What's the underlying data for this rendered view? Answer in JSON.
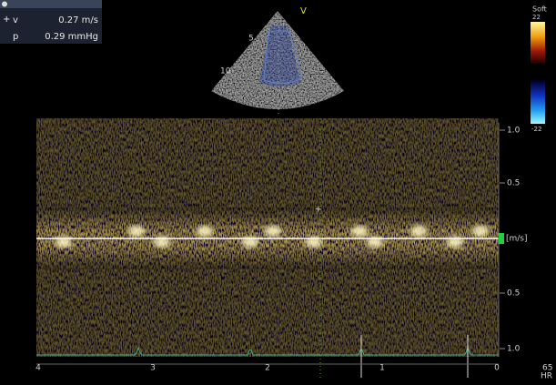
{
  "measurements": {
    "rows": [
      {
        "label": "v",
        "value": "0.27 m/s"
      },
      {
        "label": "p",
        "value": "0.29 mmHg"
      }
    ]
  },
  "image_labels": {
    "marker": "V",
    "depth_ticks": [
      "5",
      "10"
    ]
  },
  "color_scale": {
    "preset": "Soft",
    "max": "22",
    "min": "-22"
  },
  "spectrum": {
    "velocity_ticks": [
      "1.0",
      "0.5",
      "0.5",
      "1.0"
    ],
    "unit": "[m/s]",
    "time_ticks": [
      "4",
      "3",
      "2",
      "1",
      "0"
    ]
  },
  "heart_rate": {
    "value": "65",
    "unit": "HR"
  }
}
